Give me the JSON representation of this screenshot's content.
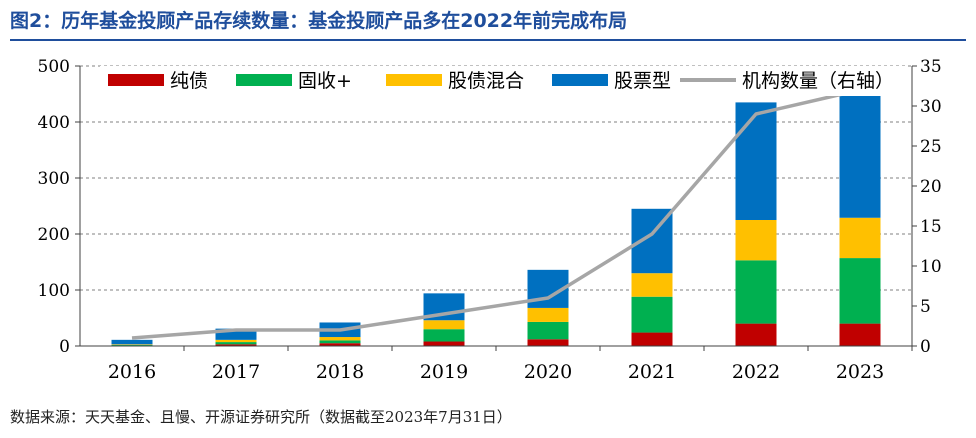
{
  "title": "图2：历年基金投顾产品存续数量：基金投顾产品多在2022年前完成布局",
  "source": "数据来源：天天基金、且慢、开源证券研究所（数据截至2023年7月31日）",
  "chart_data": {
    "type": "bar",
    "stacked": true,
    "categories": [
      "2016",
      "2017",
      "2018",
      "2019",
      "2020",
      "2021",
      "2022",
      "2023"
    ],
    "series": [
      {
        "name": "纯债",
        "color": "#c00000",
        "values": [
          1,
          3,
          5,
          8,
          12,
          24,
          40,
          40
        ]
      },
      {
        "name": "固收+",
        "color": "#00b050",
        "values": [
          1,
          4,
          5,
          22,
          31,
          64,
          113,
          117
        ]
      },
      {
        "name": "股债混合",
        "color": "#ffc000",
        "values": [
          1,
          4,
          6,
          16,
          25,
          42,
          72,
          72
        ]
      },
      {
        "name": "股票型",
        "color": "#0070c0",
        "values": [
          8,
          20,
          26,
          48,
          68,
          115,
          210,
          228
        ]
      }
    ],
    "line": {
      "name": "机构数量（右轴）",
      "color": "#a6a6a6",
      "axis": "right",
      "values": [
        1,
        2,
        2,
        4,
        6,
        14,
        29,
        32
      ]
    },
    "ylim": [
      0,
      500
    ],
    "yticks": [
      "0",
      "100",
      "200",
      "300",
      "400",
      "500"
    ],
    "y2lim": [
      0,
      35
    ],
    "y2ticks": [
      "0",
      "5",
      "10",
      "15",
      "20",
      "25",
      "30",
      "35"
    ],
    "grid": true,
    "legend": "top"
  }
}
